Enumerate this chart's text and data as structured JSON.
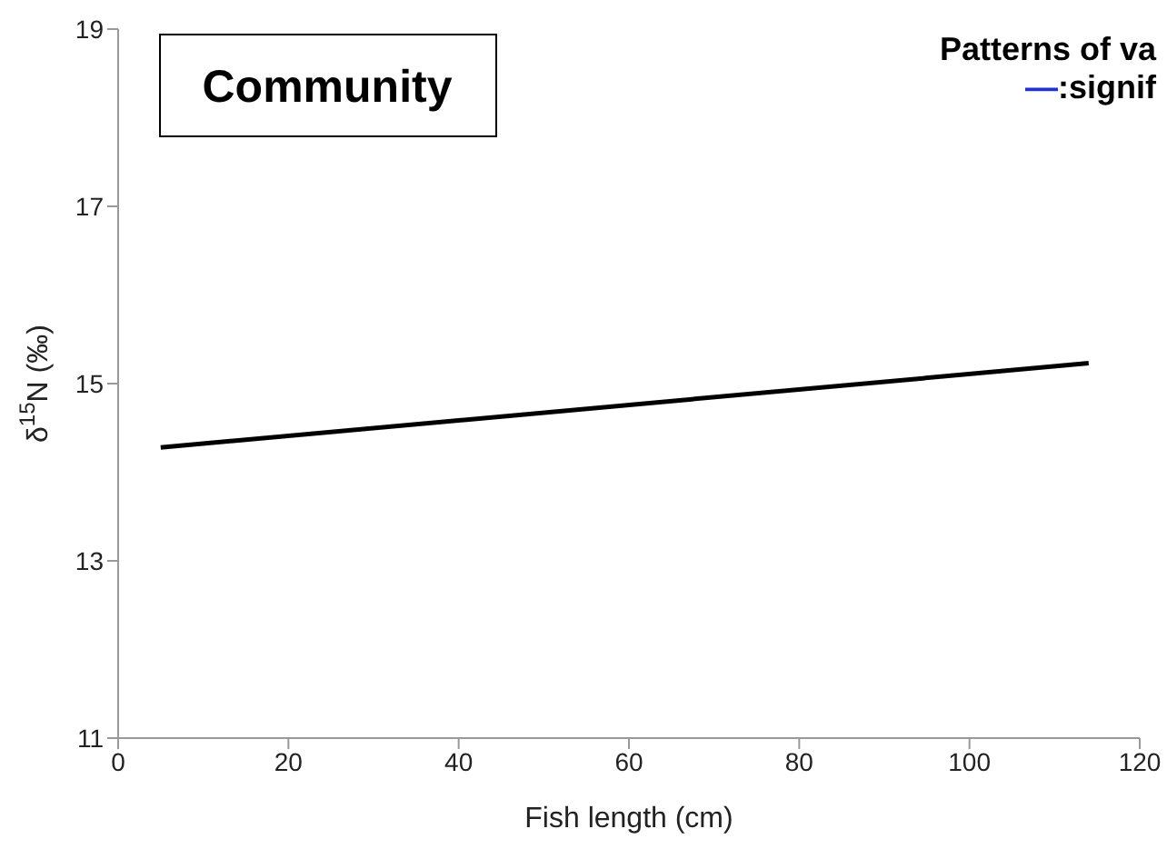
{
  "chart_data": {
    "type": "line",
    "title": "Patterns of va",
    "annotations": [
      "Community",
      "—:signif"
    ],
    "xlabel": "Fish length (cm)",
    "ylabel": "δ$^{15}$N (‰)",
    "x": [
      5,
      114
    ],
    "series": [
      {
        "color": "#000000",
        "values": [
          14.28,
          15.23
        ]
      }
    ],
    "xlim": [
      0,
      120
    ],
    "xticks": [
      0,
      20,
      40,
      60,
      80,
      100,
      120
    ],
    "ylim": [
      11,
      19
    ],
    "yticks": [
      11,
      13,
      15,
      17,
      19
    ],
    "grid": false,
    "legend": false,
    "marker": "none",
    "line_style": "solid"
  }
}
